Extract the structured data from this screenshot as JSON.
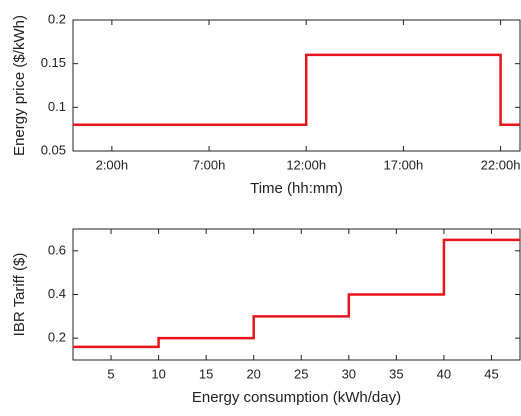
{
  "chart_data": [
    {
      "type": "line",
      "xlabel": "Time (hh:mm)",
      "ylabel": "Energy price ($/kWh)",
      "x": [
        0,
        12,
        12,
        22,
        22,
        23
      ],
      "series": [
        {
          "color": "#e8141c",
          "values": [
            0.08,
            0.08,
            0.16,
            0.16,
            0.08,
            0.08
          ]
        }
      ],
      "xlim": [
        0,
        23
      ],
      "xticks": [
        {
          "value": 2,
          "label": "2:00h"
        },
        {
          "value": 7,
          "label": "7:00h"
        },
        {
          "value": 12,
          "label": "12:00h"
        },
        {
          "value": 17,
          "label": "17:00h"
        },
        {
          "value": 22,
          "label": "22:00h"
        }
      ],
      "ylim": [
        0.05,
        0.2
      ],
      "yticks": [
        0.05,
        0.1,
        0.15,
        0.2
      ]
    },
    {
      "type": "line",
      "xlabel": "Energy consumption (kWh/day)",
      "ylabel": "IBR Tariff ($)",
      "x": [
        1,
        10,
        10,
        20,
        20,
        30,
        30,
        40,
        40,
        48
      ],
      "series": [
        {
          "color": "#e8141c",
          "values": [
            0.16,
            0.16,
            0.2,
            0.2,
            0.3,
            0.3,
            0.4,
            0.4,
            0.65,
            0.65
          ]
        }
      ],
      "xlim": [
        1,
        48
      ],
      "xticks": [
        5,
        10,
        15,
        20,
        25,
        30,
        35,
        40,
        45
      ],
      "ylim": [
        0.1,
        0.7
      ],
      "yticks": [
        0.2,
        0.4,
        0.6
      ]
    }
  ]
}
